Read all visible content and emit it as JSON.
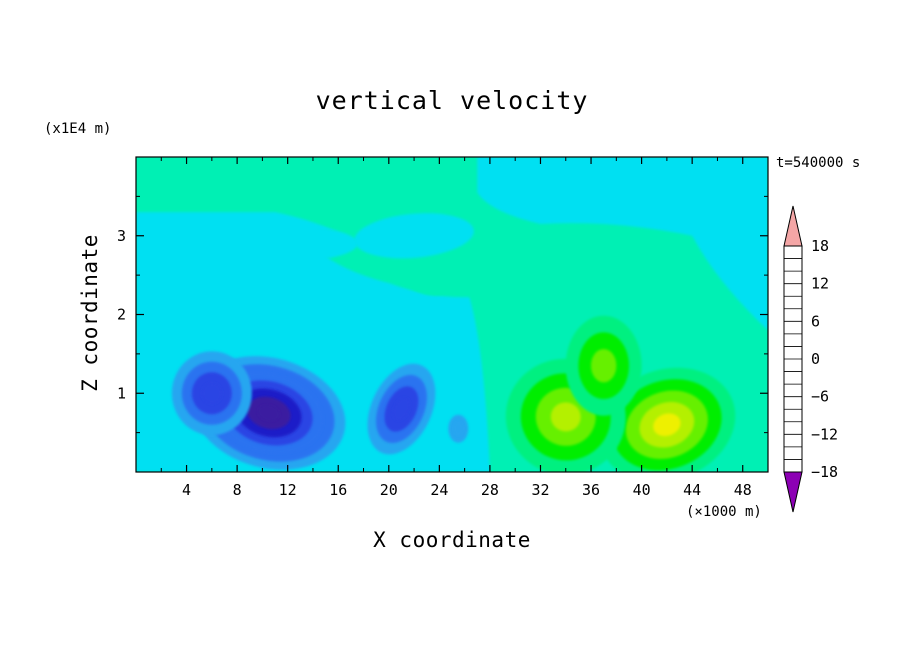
{
  "chart_data": {
    "type": "heatmap",
    "title": "vertical velocity",
    "xlabel": "X coordinate",
    "ylabel": "Z coordinate",
    "x_unit": "(×1000 m)",
    "y_unit": "(x1E4 m)",
    "annotation": "t=540000 s",
    "xlim": [
      0,
      50
    ],
    "ylim": [
      0,
      4
    ],
    "x_ticks": [
      4,
      8,
      12,
      16,
      20,
      24,
      28,
      32,
      36,
      40,
      44,
      48
    ],
    "y_ticks": [
      1,
      2,
      3
    ],
    "colorbar": {
      "min": -21,
      "max": 21,
      "step": 3,
      "labeled_ticks": [
        -18,
        -12,
        -6,
        0,
        6,
        12,
        18
      ],
      "extend": "both",
      "colors": [
        "#8c00b4",
        "#3a1aa0",
        "#1e1ec8",
        "#2a44e4",
        "#2c73f0",
        "#28a6f0",
        "#00e0f2",
        "#00f0b4",
        "#00f080",
        "#00ee00",
        "#66f000",
        "#b4f000",
        "#eef000",
        "#ffd200",
        "#ffaa00",
        "#ff8200",
        "#ff5a00",
        "#ff2e00",
        "#f81414",
        "#f4a6a6"
      ]
    },
    "features": [
      {
        "x": 10.5,
        "z": 0.75,
        "w": -19
      },
      {
        "x": 6,
        "z": 1.0,
        "w": -12
      },
      {
        "x": 21,
        "z": 0.8,
        "w": -12
      },
      {
        "x": 25.5,
        "z": 0.55,
        "w": -6
      },
      {
        "x": 42,
        "z": 0.6,
        "w": 15
      },
      {
        "x": 34,
        "z": 0.7,
        "w": 12
      },
      {
        "x": 37,
        "z": 1.35,
        "w": 9
      },
      {
        "x": 22,
        "z": 3.0,
        "w": -3
      },
      {
        "x": 12,
        "z": 2.9,
        "w": -2
      },
      {
        "x": 40,
        "z": 3.4,
        "w": -2
      }
    ]
  }
}
